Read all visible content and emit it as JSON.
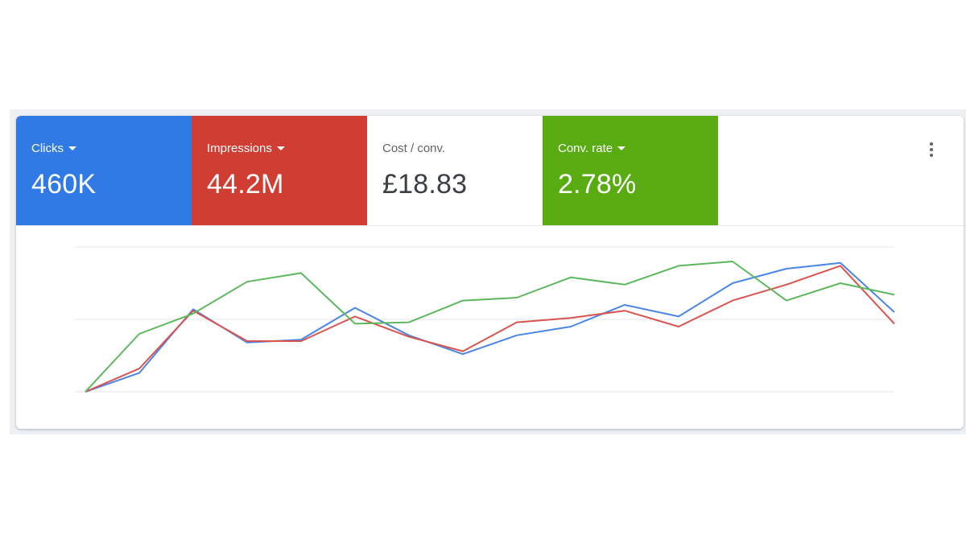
{
  "metrics": [
    {
      "label": "Clicks",
      "value": "460K",
      "color": "#2f7ae5",
      "dropdown": true
    },
    {
      "label": "Impressions",
      "value": "44.2M",
      "color": "#d03d33",
      "dropdown": true
    },
    {
      "label": "Cost / conv.",
      "value": "£18.83",
      "color": "#ffffff",
      "dropdown": false
    },
    {
      "label": "Conv. rate",
      "value": "2.78%",
      "color": "#58ab11",
      "dropdown": true
    }
  ],
  "menu_icon": "more-vert-icon",
  "chart_data": {
    "type": "line",
    "x": [
      1,
      2,
      3,
      4,
      5,
      6,
      7,
      8,
      9,
      10,
      11,
      12,
      13,
      14,
      15,
      16
    ],
    "ylim": [
      0,
      100
    ],
    "grid": true,
    "series": [
      {
        "color": "#4a86e8",
        "values": [
          0,
          13,
          57,
          34,
          36,
          58,
          39,
          26,
          39,
          45,
          60,
          52,
          75,
          85,
          89,
          55
        ]
      },
      {
        "color": "#d9534f",
        "values": [
          0,
          16,
          56,
          35,
          35,
          52,
          38,
          28,
          48,
          51,
          56,
          45,
          63,
          74,
          87,
          47
        ]
      },
      {
        "color": "#5cb85c",
        "values": [
          0,
          40,
          54,
          76,
          82,
          47,
          48,
          63,
          65,
          79,
          74,
          87,
          90,
          63,
          75,
          67
        ]
      }
    ]
  }
}
